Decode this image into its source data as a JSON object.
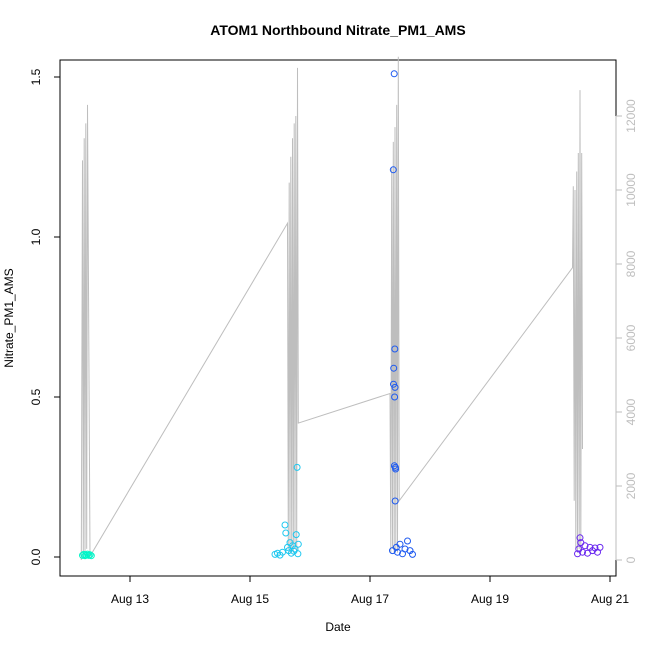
{
  "chart_data": {
    "type": "scatter",
    "title": "ATOM1 Northbound Nitrate_PM1_AMS",
    "xlabel": "Date",
    "ylabel": "Nitrate_PM1_AMS",
    "x_range": [
      "2016-08-12",
      "2016-08-21"
    ],
    "ylim": [
      0,
      1.5
    ],
    "y_ticks": [
      0.0,
      0.5,
      1.0,
      1.5
    ],
    "y_tick_labels": [
      "0.0",
      "0.5",
      "1.0",
      "1.5"
    ],
    "x_ticks": [
      "Aug 13",
      "Aug 15",
      "Aug 17",
      "Aug 19",
      "Aug 21"
    ],
    "y2_ticks": [
      0,
      2000,
      4000,
      6000,
      8000,
      10000,
      12000
    ],
    "y2_tick_labels": [
      "0",
      "2000",
      "4000",
      "6000",
      "8000",
      "10000",
      "12000"
    ],
    "grid": false,
    "legend": "none",
    "altitude_line_color": "#bebebe",
    "series": [
      {
        "color": "#00f5c8",
        "points": [
          [
            "2016-08-12 05:00",
            0.005
          ],
          [
            "2016-08-12 05:30",
            0.008
          ],
          [
            "2016-08-12 06:00",
            0.004
          ],
          [
            "2016-08-12 06:30",
            0.006
          ],
          [
            "2016-08-12 07:00",
            0.009
          ],
          [
            "2016-08-12 07:30",
            0.005
          ],
          [
            "2016-08-12 08:00",
            0.007
          ],
          [
            "2016-08-12 08:30",
            0.004
          ]
        ]
      },
      {
        "color": "#1ec8f0",
        "points": [
          [
            "2016-08-15 10:00",
            0.008
          ],
          [
            "2016-08-15 11:00",
            0.012
          ],
          [
            "2016-08-15 12:00",
            0.006
          ],
          [
            "2016-08-15 13:00",
            0.015
          ],
          [
            "2016-08-15 14:00",
            0.1
          ],
          [
            "2016-08-15 14:20",
            0.075
          ],
          [
            "2016-08-15 15:00",
            0.03
          ],
          [
            "2016-08-15 15:30",
            0.02
          ],
          [
            "2016-08-15 16:00",
            0.045
          ],
          [
            "2016-08-15 16:30",
            0.012
          ],
          [
            "2016-08-15 17:00",
            0.035
          ],
          [
            "2016-08-15 17:30",
            0.018
          ],
          [
            "2016-08-15 18:00",
            0.025
          ],
          [
            "2016-08-15 18:30",
            0.07
          ],
          [
            "2016-08-15 18:50",
            0.28
          ],
          [
            "2016-08-15 19:10",
            0.01
          ],
          [
            "2016-08-15 19:20",
            0.04
          ]
        ]
      },
      {
        "color": "#1e5af0",
        "points": [
          [
            "2016-08-17 09:00",
            0.02
          ],
          [
            "2016-08-17 09:20",
            1.21
          ],
          [
            "2016-08-17 09:25",
            0.54
          ],
          [
            "2016-08-17 09:30",
            0.59
          ],
          [
            "2016-08-17 09:40",
            1.51
          ],
          [
            "2016-08-17 09:45",
            0.285
          ],
          [
            "2016-08-17 09:50",
            0.5
          ],
          [
            "2016-08-17 09:55",
            0.65
          ],
          [
            "2016-08-17 10:00",
            0.53
          ],
          [
            "2016-08-17 10:05",
            0.175
          ],
          [
            "2016-08-17 10:10",
            0.28
          ],
          [
            "2016-08-17 10:15",
            0.275
          ],
          [
            "2016-08-17 10:30",
            0.03
          ],
          [
            "2016-08-17 11:00",
            0.015
          ],
          [
            "2016-08-17 12:00",
            0.04
          ],
          [
            "2016-08-17 13:00",
            0.01
          ],
          [
            "2016-08-17 14:00",
            0.025
          ],
          [
            "2016-08-17 15:00",
            0.05
          ],
          [
            "2016-08-17 16:00",
            0.02
          ],
          [
            "2016-08-17 17:00",
            0.008
          ]
        ]
      },
      {
        "color": "#6a28f0",
        "points": [
          [
            "2016-08-20 11:00",
            0.01
          ],
          [
            "2016-08-20 11:30",
            0.025
          ],
          [
            "2016-08-20 12:00",
            0.06
          ],
          [
            "2016-08-20 12:20",
            0.045
          ],
          [
            "2016-08-20 13:00",
            0.015
          ],
          [
            "2016-08-20 14:00",
            0.035
          ],
          [
            "2016-08-20 15:00",
            0.012
          ],
          [
            "2016-08-20 16:00",
            0.03
          ],
          [
            "2016-08-20 17:00",
            0.02
          ],
          [
            "2016-08-20 18:00",
            0.028
          ],
          [
            "2016-08-20 19:00",
            0.015
          ],
          [
            "2016-08-20 20:00",
            0.03
          ]
        ]
      }
    ],
    "altitude_series": [
      [
        "2016-08-12 04:30",
        0
      ],
      [
        "2016-08-12 05:00",
        10800
      ],
      [
        "2016-08-12 05:20",
        100
      ],
      [
        "2016-08-12 05:40",
        11400
      ],
      [
        "2016-08-12 06:00",
        200
      ],
      [
        "2016-08-12 06:20",
        11800
      ],
      [
        "2016-08-12 06:40",
        300
      ],
      [
        "2016-08-12 07:00",
        12300
      ],
      [
        "2016-08-12 08:00",
        100
      ],
      [
        "2016-08-15 15:00",
        9100
      ],
      [
        "2016-08-15 15:20",
        300
      ],
      [
        "2016-08-15 15:40",
        10200
      ],
      [
        "2016-08-15 16:00",
        200
      ],
      [
        "2016-08-15 16:20",
        10900
      ],
      [
        "2016-08-15 16:40",
        300
      ],
      [
        "2016-08-15 17:00",
        11400
      ],
      [
        "2016-08-15 17:20",
        200
      ],
      [
        "2016-08-15 17:40",
        11800
      ],
      [
        "2016-08-15 18:00",
        300
      ],
      [
        "2016-08-15 18:20",
        12000
      ],
      [
        "2016-08-15 18:40",
        200
      ],
      [
        "2016-08-15 19:00",
        13300
      ],
      [
        "2016-08-15 19:20",
        3700
      ],
      [
        "2016-08-17 08:00",
        4500
      ],
      [
        "2016-08-17 08:20",
        200
      ],
      [
        "2016-08-17 08:40",
        10600
      ],
      [
        "2016-08-17 09:00",
        300
      ],
      [
        "2016-08-17 09:20",
        11300
      ],
      [
        "2016-08-17 09:40",
        200
      ],
      [
        "2016-08-17 10:00",
        11700
      ],
      [
        "2016-08-17 10:20",
        300
      ],
      [
        "2016-08-17 10:40",
        12300
      ],
      [
        "2016-08-17 11:00",
        200
      ],
      [
        "2016-08-17 11:20",
        13600
      ],
      [
        "2016-08-17 11:40",
        1600
      ],
      [
        "2016-08-20 09:00",
        7900
      ],
      [
        "2016-08-20 09:20",
        10100
      ],
      [
        "2016-08-20 09:40",
        1600
      ],
      [
        "2016-08-20 10:00",
        10000
      ],
      [
        "2016-08-20 10:20",
        300
      ],
      [
        "2016-08-20 10:40",
        10500
      ],
      [
        "2016-08-20 11:00",
        200
      ],
      [
        "2016-08-20 11:20",
        11000
      ],
      [
        "2016-08-20 11:40",
        300
      ],
      [
        "2016-08-20 12:00",
        12700
      ],
      [
        "2016-08-20 12:20",
        200
      ],
      [
        "2016-08-20 12:40",
        11000
      ],
      [
        "2016-08-20 13:00",
        3000
      ]
    ]
  }
}
